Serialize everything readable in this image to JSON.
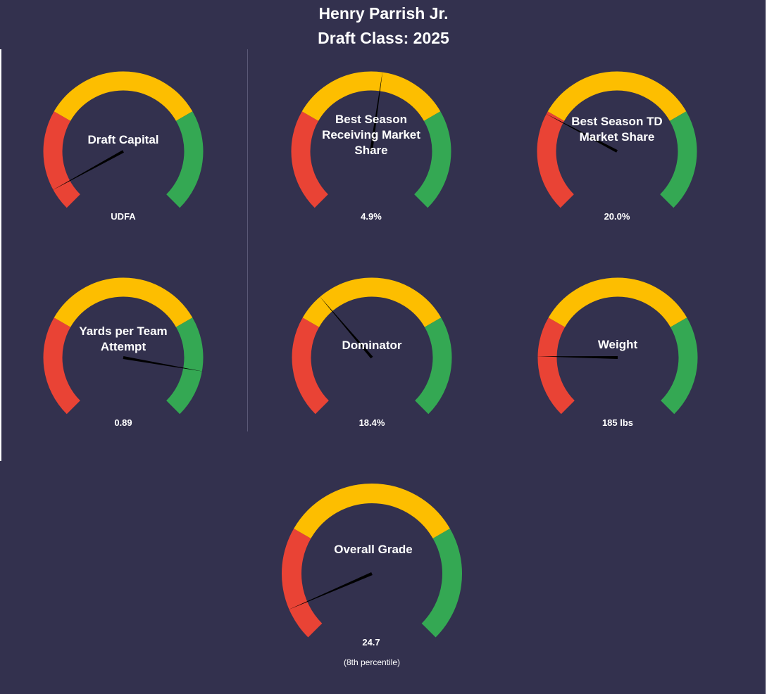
{
  "header": {
    "player_name": "Henry Parrish Jr.",
    "draft_class": "Draft Class: 2025"
  },
  "colors": {
    "background": "#33314e",
    "low": "#e94335",
    "mid": "#fdbe00",
    "high": "#34a853",
    "needle": "#000000"
  },
  "chart_data": [
    {
      "type": "gauge",
      "label": "Draft Capital",
      "value_label": "UDFA",
      "pointer_fraction": 0.06
    },
    {
      "type": "gauge",
      "label": "Best Season Receiving Market Share",
      "value_label": "4.9%",
      "pointer_fraction": 0.53
    },
    {
      "type": "gauge",
      "label": "Best Season TD Market Share",
      "value_label": "20.0%",
      "pointer_fraction": 0.27
    },
    {
      "type": "gauge",
      "label": "Yards per Team Attempt",
      "value_label": "0.89",
      "pointer_fraction": 0.87
    },
    {
      "type": "gauge",
      "label": "Dominator",
      "value_label": "18.4%",
      "pointer_fraction": 0.35
    },
    {
      "type": "gauge",
      "label": "Weight",
      "value_label": "185 lbs",
      "pointer_fraction": 0.17
    },
    {
      "type": "gauge",
      "label": "Overall Grade",
      "value_label": "24.7",
      "note": "(8th percentile)",
      "pointer_fraction": 0.08
    }
  ]
}
